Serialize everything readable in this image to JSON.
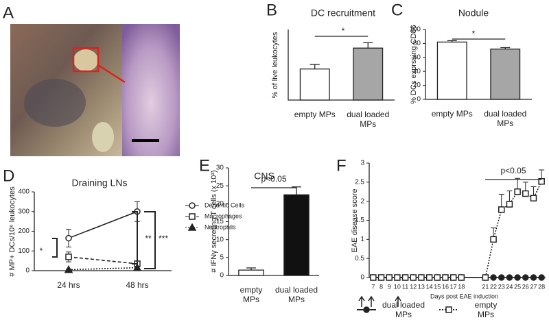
{
  "panel_labels": [
    "A",
    "B",
    "C",
    "D",
    "E",
    "F"
  ],
  "chart_data": [
    {
      "type": "bar",
      "title": "DC recruitment",
      "y_label": "% of live leukocytes",
      "categories": [
        "empty MPs",
        "dual loaded\nMPs"
      ],
      "values": [
        11,
        18.4
      ],
      "errors": [
        1.6,
        1.9
      ],
      "colors": [
        "#ffffff",
        "#a6a6a6"
      ],
      "ylim": [
        0,
        25
      ],
      "annotations": [
        "*"
      ]
    },
    {
      "type": "bar",
      "title": "Nodule",
      "y_label": "% DCs exprssing CD86",
      "categories": [
        "empty MPs",
        "dual loaded\nMPs"
      ],
      "values": [
        82,
        72
      ],
      "errors": [
        2,
        2
      ],
      "colors": [
        "#ffffff",
        "#a6a6a6"
      ],
      "ylim": [
        0,
        100
      ],
      "yticks": [
        0,
        20,
        40,
        60,
        80,
        100
      ],
      "annotations": [
        "*"
      ]
    },
    {
      "type": "line",
      "title": "Draining LNs",
      "y_label": "# MP+ DCs/10⁶ leukocytes",
      "categories": [
        "24 hrs",
        "48 hrs"
      ],
      "ylim": [
        0,
        400
      ],
      "yticks": [
        0,
        100,
        200,
        300,
        400
      ],
      "legend": "right",
      "series": [
        {
          "name": "Dendritic Cells",
          "color": "#222222",
          "marker": "circle-open",
          "line_style": "solid",
          "values": [
            165,
            300
          ],
          "errors": [
            45,
            50
          ]
        },
        {
          "name": "Macrophages",
          "color": "#222222",
          "marker": "square-open",
          "line_style": "dashed",
          "values": [
            70,
            35
          ],
          "errors": [
            25,
            10
          ]
        },
        {
          "name": "Neutrophils",
          "color": "#222222",
          "marker": "triangle-filled",
          "line_style": "dotted",
          "values": [
            5,
            15
          ],
          "errors": [
            3,
            4
          ]
        }
      ],
      "annotations": [
        "*",
        "**",
        "***"
      ]
    },
    {
      "type": "bar",
      "title": "CNS",
      "y_label": "# IFNγ secreting T cells (x 10³)",
      "categories": [
        "empty\nMPs",
        "dual loaded\nMPs"
      ],
      "values": [
        1.5,
        22.5
      ],
      "errors": [
        0.6,
        2.2
      ],
      "colors": [
        "#ffffff",
        "#111111"
      ],
      "ylim": [
        0,
        30
      ],
      "yticks": [
        0,
        5,
        10,
        15,
        20,
        25,
        30
      ],
      "annotations": [
        "p<0.05"
      ]
    },
    {
      "type": "line",
      "y_label": "EAE disease score",
      "x_label": "Days post EAE induction",
      "x": [
        7,
        8,
        9,
        10,
        11,
        12,
        13,
        14,
        15,
        16,
        17,
        18,
        21,
        22,
        23,
        24,
        25,
        26,
        27,
        28
      ],
      "xlim": [
        6.5,
        28.5
      ],
      "xticks": [
        7,
        8,
        9,
        10,
        11,
        12,
        13,
        14,
        15,
        16,
        17,
        18,
        21,
        22,
        23,
        24,
        25,
        26,
        27,
        28
      ],
      "ylim": [
        0,
        3
      ],
      "yticks": [
        0,
        0.5,
        1,
        1.5,
        2,
        2.5,
        3
      ],
      "legend": "bottom",
      "series": [
        {
          "name": "dual loaded\nMPs",
          "color": "#222222",
          "marker": "circle-filled",
          "line_style": "solid",
          "values": [
            0,
            0,
            0,
            0,
            0,
            0,
            0,
            0,
            0,
            0,
            0,
            0,
            0,
            0,
            0,
            0,
            0,
            0,
            0,
            0
          ]
        },
        {
          "name": "empty\nMPs",
          "color": "#222222",
          "marker": "square-open",
          "line_style": "dotted",
          "values": [
            0,
            0,
            0,
            0,
            0,
            0,
            0,
            0,
            0,
            0,
            0,
            0,
            0,
            1.0,
            1.78,
            1.92,
            2.25,
            2.2,
            2.08,
            2.52
          ],
          "errors": [
            0,
            0,
            0,
            0,
            0,
            0,
            0,
            0,
            0,
            0,
            0,
            0,
            0,
            0.3,
            0.4,
            0.35,
            0.35,
            0.3,
            0.3,
            0.3
          ]
        }
      ],
      "annotations": [
        "p<0.05"
      ]
    }
  ]
}
